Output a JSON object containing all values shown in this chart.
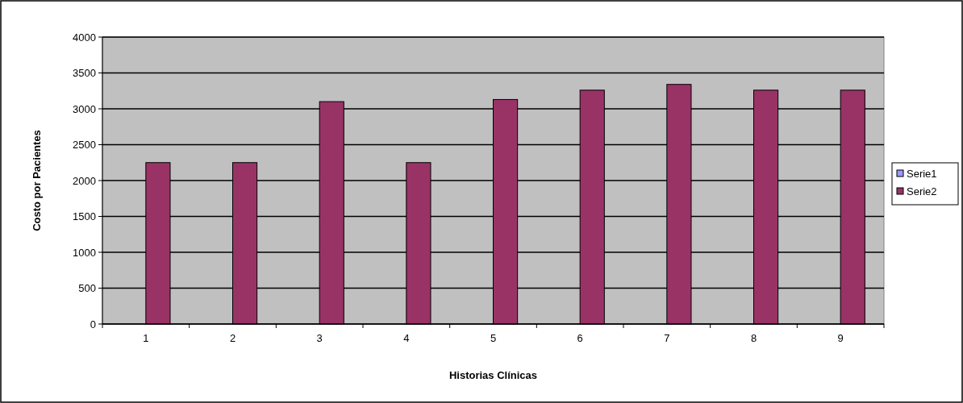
{
  "chart_data": {
    "type": "bar",
    "xlabel": "Historias Clínicas",
    "ylabel": "Costo por Pacientes",
    "categories": [
      "1",
      "2",
      "3",
      "4",
      "5",
      "6",
      "7",
      "8",
      "9"
    ],
    "series": [
      {
        "name": "Serie1",
        "color": "#9999ff",
        "values": [
          null,
          null,
          null,
          null,
          null,
          null,
          null,
          null,
          null
        ]
      },
      {
        "name": "Serie2",
        "color": "#993366",
        "values": [
          2250,
          2250,
          3100,
          2250,
          3130,
          3260,
          3340,
          3260,
          3260
        ]
      }
    ],
    "ylim": [
      0,
      4000
    ],
    "yticks": [
      0,
      500,
      1000,
      1500,
      2000,
      2500,
      3000,
      3500,
      4000
    ],
    "grid": "y",
    "legend": "right"
  }
}
